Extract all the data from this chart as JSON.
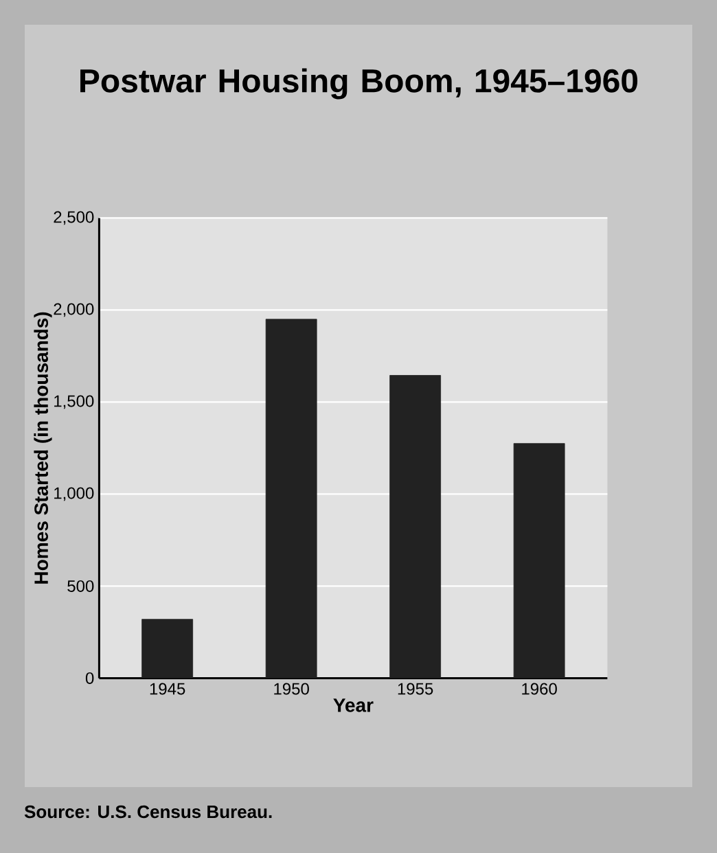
{
  "chart_data": {
    "type": "bar",
    "title": "Postwar Housing Boom, 1945–1960",
    "categories": [
      "1945",
      "1950",
      "1955",
      "1960"
    ],
    "values": [
      320,
      1950,
      1645,
      1275
    ],
    "color": "#222222",
    "xlabel": "Year",
    "ylabel": "Homes Started (in thousands)",
    "ylim": [
      0,
      2500
    ],
    "yticks": [
      0,
      {
        "value": 500,
        "label": "500"
      },
      {
        "value": 1000,
        "label": "1,000"
      },
      {
        "value": 1500,
        "label": "1,500"
      },
      {
        "value": 2000,
        "label": "2,000"
      },
      {
        "value": 2500,
        "label": "2,500"
      }
    ],
    "grid": "y",
    "annotations": [
      "Source: U.S. Census Bureau."
    ]
  }
}
